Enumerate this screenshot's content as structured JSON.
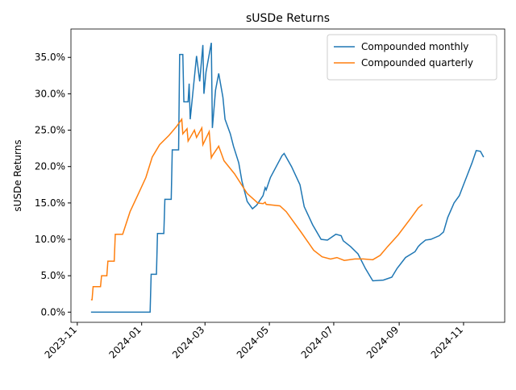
{
  "chart_data": {
    "type": "line",
    "title": "sUSDe Returns",
    "y_label": "sUSDe Returns",
    "legend": "upper right",
    "grid": false,
    "xlim": [
      "2023-10-26",
      "2024-12-10"
    ],
    "xticks": [
      {
        "value": "2023-11-01",
        "label": "2023-11"
      },
      {
        "value": "2024-01-01",
        "label": "2024-01"
      },
      {
        "value": "2024-03-01",
        "label": "2024-03"
      },
      {
        "value": "2024-05-01",
        "label": "2024-05"
      },
      {
        "value": "2024-07-01",
        "label": "2024-07"
      },
      {
        "value": "2024-09-01",
        "label": "2024-09"
      },
      {
        "value": "2024-11-01",
        "label": "2024-11"
      }
    ],
    "ylim": [
      -1.4,
      38.9
    ],
    "yticks": [
      {
        "value": 0,
        "label": "0.0%"
      },
      {
        "value": 5,
        "label": "5.0%"
      },
      {
        "value": 10,
        "label": "10.0%"
      },
      {
        "value": 15,
        "label": "15.0%"
      },
      {
        "value": 20,
        "label": "20.0%"
      },
      {
        "value": 25,
        "label": "25.0%"
      },
      {
        "value": 30,
        "label": "30.0%"
      },
      {
        "value": 35,
        "label": "35.0%"
      }
    ],
    "series": [
      {
        "name": "Compounded monthly",
        "color": "#1f77b4",
        "x": [
          "2023-11-14",
          "2024-01-09",
          "2024-01-10",
          "2024-01-15",
          "2024-01-16",
          "2024-01-22",
          "2024-01-23",
          "2024-01-29",
          "2024-01-30",
          "2024-02-05",
          "2024-02-06",
          "2024-02-09",
          "2024-02-10",
          "2024-02-14",
          "2024-02-15",
          "2024-02-16",
          "2024-02-22",
          "2024-02-25",
          "2024-02-28",
          "2024-02-29",
          "2024-03-02",
          "2024-03-07",
          "2024-03-08",
          "2024-03-11",
          "2024-03-14",
          "2024-03-18",
          "2024-03-20",
          "2024-03-25",
          "2024-03-28",
          "2024-04-02",
          "2024-04-05",
          "2024-04-10",
          "2024-04-15",
          "2024-04-19",
          "2024-04-25",
          "2024-04-27",
          "2024-04-28",
          "2024-05-02",
          "2024-05-13",
          "2024-05-15",
          "2024-05-22",
          "2024-05-30",
          "2024-06-03",
          "2024-06-11",
          "2024-06-19",
          "2024-06-25",
          "2024-07-03",
          "2024-07-08",
          "2024-07-10",
          "2024-07-17",
          "2024-07-24",
          "2024-07-31",
          "2024-08-07",
          "2024-08-17",
          "2024-08-25",
          "2024-08-30",
          "2024-09-07",
          "2024-09-16",
          "2024-09-19",
          "2024-09-21",
          "2024-09-26",
          "2024-10-01",
          "2024-10-09",
          "2024-10-13",
          "2024-10-17",
          "2024-10-23",
          "2024-10-28",
          "2024-11-01",
          "2024-11-05",
          "2024-11-09",
          "2024-11-13",
          "2024-11-17",
          "2024-11-20"
        ],
        "values": [
          0,
          0,
          5.2,
          5.2,
          10.8,
          10.8,
          15.5,
          15.5,
          22.3,
          22.3,
          35.4,
          35.4,
          28.9,
          28.9,
          31.4,
          26.5,
          35.2,
          31.7,
          36.7,
          30.0,
          33.0,
          37.0,
          25.3,
          30.5,
          32.8,
          29.5,
          26.5,
          24.5,
          22.8,
          20.5,
          18.0,
          15.2,
          14.2,
          14.7,
          16.0,
          17.1,
          16.8,
          18.5,
          21.5,
          21.8,
          20.0,
          17.5,
          14.5,
          12.0,
          10.0,
          9.9,
          10.7,
          10.5,
          9.8,
          9.0,
          8.0,
          6.0,
          4.3,
          4.4,
          4.8,
          6.0,
          7.5,
          8.3,
          9.0,
          9.3,
          9.9,
          10.0,
          10.5,
          11.0,
          13.0,
          15.0,
          16.0,
          17.5,
          19.0,
          20.5,
          22.2,
          22.1,
          21.3
        ]
      },
      {
        "name": "Compounded quarterly",
        "color": "#ff7f0e",
        "x": [
          "2023-11-14",
          "2023-11-15",
          "2023-11-16",
          "2023-11-23",
          "2023-11-24",
          "2023-11-29",
          "2023-11-30",
          "2023-12-06",
          "2023-12-07",
          "2023-12-14",
          "2023-12-21",
          "2023-12-29",
          "2024-01-05",
          "2024-01-11",
          "2024-01-18",
          "2024-01-27",
          "2024-02-03",
          "2024-02-08",
          "2024-02-09",
          "2024-02-13",
          "2024-02-14",
          "2024-02-20",
          "2024-02-22",
          "2024-02-27",
          "2024-02-28",
          "2024-03-05",
          "2024-03-07",
          "2024-03-08",
          "2024-03-14",
          "2024-03-19",
          "2024-03-29",
          "2024-04-10",
          "2024-04-20",
          "2024-04-25",
          "2024-04-27",
          "2024-04-28",
          "2024-05-11",
          "2024-05-17",
          "2024-05-21",
          "2024-05-31",
          "2024-06-12",
          "2024-06-20",
          "2024-06-28",
          "2024-07-04",
          "2024-07-11",
          "2024-07-21",
          "2024-07-29",
          "2024-08-07",
          "2024-08-14",
          "2024-08-21",
          "2024-08-31",
          "2024-09-12",
          "2024-09-19",
          "2024-09-23"
        ],
        "values": [
          1.7,
          1.7,
          3.5,
          3.5,
          5.0,
          5.0,
          7.0,
          7.0,
          10.7,
          10.7,
          13.8,
          16.3,
          18.5,
          21.3,
          23.0,
          24.3,
          25.5,
          26.5,
          24.5,
          25.2,
          23.5,
          25.0,
          24.0,
          25.3,
          23.0,
          24.8,
          21.2,
          21.5,
          22.8,
          20.8,
          19.0,
          16.3,
          15.0,
          14.9,
          15.1,
          14.8,
          14.6,
          13.8,
          13.0,
          11.0,
          8.5,
          7.6,
          7.3,
          7.5,
          7.1,
          7.3,
          7.3,
          7.2,
          7.8,
          9.0,
          10.6,
          12.9,
          14.3,
          14.8
        ]
      }
    ]
  }
}
